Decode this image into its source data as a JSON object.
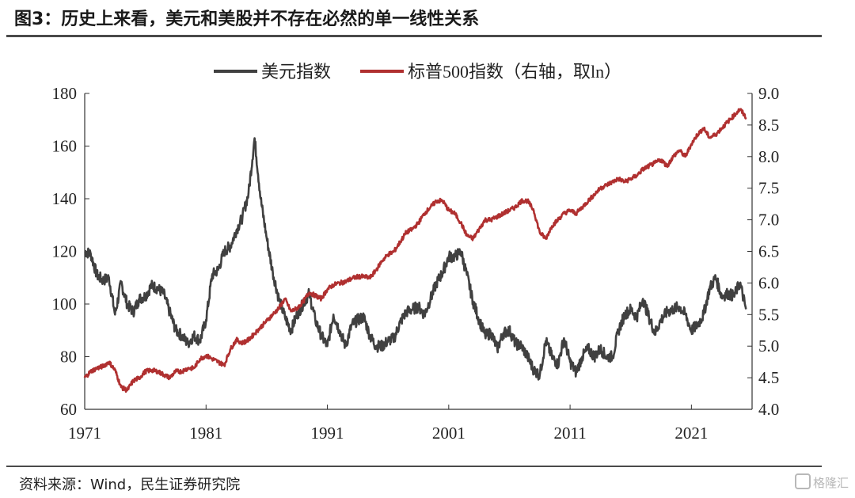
{
  "header": {
    "title": "图3：历史上来看，美元和美股并不存在必然的单一线性关系"
  },
  "footer": {
    "source": "资料来源：Wind，民生证券研究院",
    "watermark": "格隆汇"
  },
  "chart_data": {
    "type": "line",
    "title": "图3：历史上来看，美元和美股并不存在必然的单一线性关系",
    "xlabel": "",
    "ylabel": "",
    "x_ticks": [
      "1971",
      "1981",
      "1991",
      "2001",
      "2011",
      "2021"
    ],
    "xlim": [
      1971,
      2026
    ],
    "y_left": {
      "ylim": [
        60,
        180
      ],
      "ticks": [
        "60",
        "80",
        "100",
        "120",
        "140",
        "160",
        "180"
      ]
    },
    "y_right": {
      "ylim": [
        4.0,
        9.0
      ],
      "ticks": [
        "4.0",
        "4.5",
        "5.0",
        "5.5",
        "6.0",
        "6.5",
        "7.0",
        "7.5",
        "8.0",
        "8.5",
        "9.0"
      ]
    },
    "legend_position": "top-center",
    "grid": false,
    "series": [
      {
        "name": "美元指数",
        "axis": "left",
        "color": "#404040",
        "points": [
          [
            1971.0,
            120
          ],
          [
            1971.5,
            119
          ],
          [
            1972.0,
            111
          ],
          [
            1972.5,
            109
          ],
          [
            1973.0,
            110
          ],
          [
            1973.5,
            96
          ],
          [
            1974.0,
            108
          ],
          [
            1974.5,
            100
          ],
          [
            1975.0,
            97
          ],
          [
            1975.5,
            102
          ],
          [
            1976.0,
            103
          ],
          [
            1976.5,
            107
          ],
          [
            1977.0,
            106
          ],
          [
            1977.5,
            104
          ],
          [
            1978.0,
            97
          ],
          [
            1978.5,
            90
          ],
          [
            1979.0,
            88
          ],
          [
            1979.5,
            85
          ],
          [
            1980.0,
            88
          ],
          [
            1980.5,
            86
          ],
          [
            1981.0,
            94
          ],
          [
            1981.5,
            111
          ],
          [
            1982.0,
            113
          ],
          [
            1982.5,
            120
          ],
          [
            1983.0,
            122
          ],
          [
            1983.5,
            128
          ],
          [
            1984.0,
            133
          ],
          [
            1984.5,
            142
          ],
          [
            1985.0,
            163
          ],
          [
            1985.5,
            140
          ],
          [
            1986.0,
            125
          ],
          [
            1986.5,
            112
          ],
          [
            1987.0,
            102
          ],
          [
            1987.5,
            95
          ],
          [
            1988.0,
            90
          ],
          [
            1988.5,
            96
          ],
          [
            1989.0,
            100
          ],
          [
            1989.5,
            104
          ],
          [
            1990.0,
            94
          ],
          [
            1990.5,
            88
          ],
          [
            1991.0,
            84
          ],
          [
            1991.5,
            96
          ],
          [
            1992.0,
            90
          ],
          [
            1992.5,
            84
          ],
          [
            1993.0,
            92
          ],
          [
            1993.5,
            94
          ],
          [
            1994.0,
            95
          ],
          [
            1994.5,
            88
          ],
          [
            1995.0,
            84
          ],
          [
            1995.5,
            84
          ],
          [
            1996.0,
            86
          ],
          [
            1996.5,
            87
          ],
          [
            1997.0,
            93
          ],
          [
            1997.5,
            97
          ],
          [
            1998.0,
            98
          ],
          [
            1998.5,
            99
          ],
          [
            1999.0,
            96
          ],
          [
            1999.5,
            102
          ],
          [
            2000.0,
            108
          ],
          [
            2000.5,
            112
          ],
          [
            2001.0,
            118
          ],
          [
            2001.5,
            118
          ],
          [
            2002.0,
            120
          ],
          [
            2002.5,
            111
          ],
          [
            2003.0,
            101
          ],
          [
            2003.5,
            94
          ],
          [
            2004.0,
            88
          ],
          [
            2004.5,
            89
          ],
          [
            2005.0,
            83
          ],
          [
            2005.5,
            89
          ],
          [
            2006.0,
            90
          ],
          [
            2006.5,
            85
          ],
          [
            2007.0,
            84
          ],
          [
            2007.5,
            80
          ],
          [
            2008.0,
            75
          ],
          [
            2008.5,
            73
          ],
          [
            2009.0,
            86
          ],
          [
            2009.5,
            80
          ],
          [
            2010.0,
            77
          ],
          [
            2010.5,
            87
          ],
          [
            2011.0,
            78
          ],
          [
            2011.5,
            74
          ],
          [
            2012.0,
            80
          ],
          [
            2012.5,
            83
          ],
          [
            2013.0,
            80
          ],
          [
            2013.5,
            83
          ],
          [
            2014.0,
            80
          ],
          [
            2014.5,
            80
          ],
          [
            2015.0,
            90
          ],
          [
            2015.5,
            96
          ],
          [
            2016.0,
            98
          ],
          [
            2016.5,
            95
          ],
          [
            2017.0,
            102
          ],
          [
            2017.5,
            95
          ],
          [
            2018.0,
            89
          ],
          [
            2018.5,
            94
          ],
          [
            2019.0,
            97
          ],
          [
            2019.5,
            98
          ],
          [
            2020.0,
            99
          ],
          [
            2020.5,
            96
          ],
          [
            2021.0,
            90
          ],
          [
            2021.5,
            92
          ],
          [
            2022.0,
            96
          ],
          [
            2022.5,
            106
          ],
          [
            2023.0,
            110
          ],
          [
            2023.5,
            103
          ],
          [
            2024.0,
            104
          ],
          [
            2024.5,
            103
          ],
          [
            2025.0,
            108
          ],
          [
            2025.5,
            98
          ]
        ]
      },
      {
        "name": "标普500指数（右轴，取ln）",
        "axis": "right",
        "color": "#b03030",
        "points": [
          [
            1971.0,
            4.5
          ],
          [
            1971.5,
            4.6
          ],
          [
            1972.0,
            4.65
          ],
          [
            1972.5,
            4.68
          ],
          [
            1973.0,
            4.75
          ],
          [
            1973.5,
            4.62
          ],
          [
            1974.0,
            4.35
          ],
          [
            1974.5,
            4.3
          ],
          [
            1975.0,
            4.45
          ],
          [
            1975.5,
            4.5
          ],
          [
            1976.0,
            4.6
          ],
          [
            1976.5,
            4.62
          ],
          [
            1977.0,
            4.6
          ],
          [
            1977.5,
            4.55
          ],
          [
            1978.0,
            4.5
          ],
          [
            1978.5,
            4.6
          ],
          [
            1979.0,
            4.6
          ],
          [
            1979.5,
            4.65
          ],
          [
            1980.0,
            4.65
          ],
          [
            1980.5,
            4.8
          ],
          [
            1981.0,
            4.85
          ],
          [
            1981.5,
            4.8
          ],
          [
            1982.0,
            4.75
          ],
          [
            1982.5,
            4.7
          ],
          [
            1983.0,
            4.95
          ],
          [
            1983.5,
            5.1
          ],
          [
            1984.0,
            5.05
          ],
          [
            1984.5,
            5.1
          ],
          [
            1985.0,
            5.2
          ],
          [
            1985.5,
            5.3
          ],
          [
            1986.0,
            5.4
          ],
          [
            1986.5,
            5.5
          ],
          [
            1987.0,
            5.6
          ],
          [
            1987.5,
            5.75
          ],
          [
            1988.0,
            5.55
          ],
          [
            1988.5,
            5.6
          ],
          [
            1989.0,
            5.7
          ],
          [
            1989.5,
            5.85
          ],
          [
            1990.0,
            5.8
          ],
          [
            1990.5,
            5.75
          ],
          [
            1991.0,
            5.9
          ],
          [
            1991.5,
            5.97
          ],
          [
            1992.0,
            6.0
          ],
          [
            1992.5,
            6.02
          ],
          [
            1993.0,
            6.07
          ],
          [
            1993.5,
            6.1
          ],
          [
            1994.0,
            6.1
          ],
          [
            1994.5,
            6.08
          ],
          [
            1995.0,
            6.2
          ],
          [
            1995.5,
            6.35
          ],
          [
            1996.0,
            6.45
          ],
          [
            1996.5,
            6.5
          ],
          [
            1997.0,
            6.65
          ],
          [
            1997.5,
            6.8
          ],
          [
            1998.0,
            6.85
          ],
          [
            1998.5,
            6.95
          ],
          [
            1999.0,
            7.1
          ],
          [
            1999.5,
            7.2
          ],
          [
            2000.0,
            7.3
          ],
          [
            2000.5,
            7.3
          ],
          [
            2001.0,
            7.15
          ],
          [
            2001.5,
            7.1
          ],
          [
            2002.0,
            6.95
          ],
          [
            2002.5,
            6.75
          ],
          [
            2003.0,
            6.7
          ],
          [
            2003.5,
            6.85
          ],
          [
            2004.0,
            7.0
          ],
          [
            2004.5,
            7.0
          ],
          [
            2005.0,
            7.05
          ],
          [
            2005.5,
            7.1
          ],
          [
            2006.0,
            7.15
          ],
          [
            2006.5,
            7.2
          ],
          [
            2007.0,
            7.3
          ],
          [
            2007.5,
            7.3
          ],
          [
            2008.0,
            7.15
          ],
          [
            2008.5,
            6.8
          ],
          [
            2009.0,
            6.7
          ],
          [
            2009.5,
            6.9
          ],
          [
            2010.0,
            7.0
          ],
          [
            2010.5,
            7.1
          ],
          [
            2011.0,
            7.15
          ],
          [
            2011.5,
            7.1
          ],
          [
            2012.0,
            7.2
          ],
          [
            2012.5,
            7.3
          ],
          [
            2013.0,
            7.4
          ],
          [
            2013.5,
            7.5
          ],
          [
            2014.0,
            7.55
          ],
          [
            2014.5,
            7.6
          ],
          [
            2015.0,
            7.65
          ],
          [
            2015.5,
            7.6
          ],
          [
            2016.0,
            7.65
          ],
          [
            2016.5,
            7.7
          ],
          [
            2017.0,
            7.8
          ],
          [
            2017.5,
            7.85
          ],
          [
            2018.0,
            7.9
          ],
          [
            2018.5,
            7.95
          ],
          [
            2019.0,
            7.85
          ],
          [
            2019.5,
            8.0
          ],
          [
            2020.0,
            8.1
          ],
          [
            2020.5,
            8.0
          ],
          [
            2021.0,
            8.2
          ],
          [
            2021.5,
            8.35
          ],
          [
            2022.0,
            8.45
          ],
          [
            2022.5,
            8.3
          ],
          [
            2023.0,
            8.35
          ],
          [
            2023.5,
            8.45
          ],
          [
            2024.0,
            8.55
          ],
          [
            2024.5,
            8.65
          ],
          [
            2025.0,
            8.75
          ],
          [
            2025.5,
            8.62
          ]
        ]
      }
    ]
  }
}
